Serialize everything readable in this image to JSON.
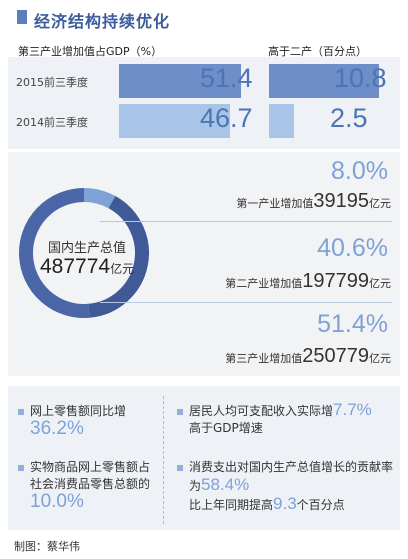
{
  "title": "经济结构持续优化",
  "header": {
    "left": "第三产业增加值占GDP（%）",
    "right": "高于二产（百分点）"
  },
  "comparison": {
    "rows": [
      {
        "label": "2015前三季度",
        "share": "51.4",
        "above": "10.8",
        "share_value": 51.4,
        "above_value": 10.8
      },
      {
        "label": "2014前三季度",
        "share": "46.7",
        "above": "2.5",
        "share_value": 46.7,
        "above_value": 2.5
      }
    ]
  },
  "gdp": {
    "label": "国内生产总值",
    "value": "487774",
    "unit": "亿元"
  },
  "industries": [
    {
      "pct": "8.0%",
      "pct_value": 8.0,
      "label": "第一产业增加值",
      "amount": "39195",
      "unit": "亿元",
      "color": "#7fa2d6"
    },
    {
      "pct": "40.6%",
      "pct_value": 40.6,
      "label": "第二产业增加值",
      "amount": "197799",
      "unit": "亿元",
      "color": "#3f5a97"
    },
    {
      "pct": "51.4%",
      "pct_value": 51.4,
      "label": "第三产业增加值",
      "amount": "250779",
      "unit": "亿元",
      "color": "#4a66a6"
    }
  ],
  "stats": {
    "online_retail": {
      "line1": "网上零售额同比增",
      "value": "36.2%"
    },
    "online_share": {
      "line1": "实物商品网上零售额占",
      "line2": "社会消费品零售总额的",
      "value": "10.0%"
    },
    "income": {
      "line1": "居民人均可支配收入实际增",
      "value": "7.7%",
      "line2": "高于GDP增速"
    },
    "consumption": {
      "line1": "消费支出对国内生产总值增长的贡献率",
      "prefix": "为",
      "value": "58.4%",
      "line3a": "比上年同期提高",
      "value2": "9.3",
      "line3b": "个百分点"
    }
  },
  "credit": "制图：蔡华伟",
  "colors": {
    "accent": "#5b7fbd",
    "bar_dark": "#6e8ec7",
    "bar_light": "#a8c4e6",
    "highlight": "#7fa2d6"
  }
}
